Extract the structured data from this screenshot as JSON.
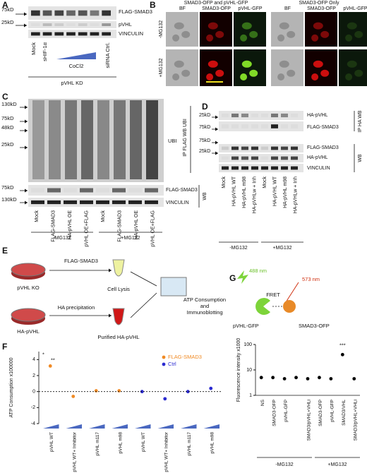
{
  "panel_labels": [
    "A",
    "B",
    "C",
    "D",
    "E",
    "F",
    "G"
  ],
  "panel_a": {
    "markers": [
      "75kD",
      "25kD"
    ],
    "bands": [
      "FLAG-SMAD3",
      "pVHL",
      "VINCULIN"
    ],
    "lanes": [
      "Mock",
      "sHIF-1α",
      "siRNA Ctrl."
    ],
    "treatment": "CoCl2",
    "group": "pVHL KD"
  },
  "panel_b": {
    "groups": [
      "SMAD3-OFP and pVHL-GFP",
      "SMAD3-OFP Only"
    ],
    "columns": [
      "BF",
      "SMAD3-OFP",
      "pVHL-GFP",
      "BF",
      "SMAD3-OFP",
      "pVHL-GFP"
    ],
    "rows": [
      "-MG132",
      "+MG132"
    ]
  },
  "panel_c": {
    "markers": [
      "130kD",
      "75kD",
      "48kD",
      "25kD",
      "75kD",
      "130kD"
    ],
    "bands": [
      "UBI",
      "FLAG-SMAD3",
      "VINCULIN"
    ],
    "method": "WB",
    "lanes": [
      "Mock",
      "FLAG-SMAD3",
      "HA-pVHL OE",
      "pVHL OE+FLAG",
      "Mock",
      "FLAG-SMAD3",
      "HA-pVHL OE",
      "pVHL OE+FLAG"
    ],
    "groups": [
      "-MG132",
      "+MG132"
    ]
  },
  "panel_d": {
    "methods": [
      "IP FLAG WB UBI",
      "IP HA WB",
      "WB"
    ],
    "markers": [
      "25kD",
      "75kD",
      "75kD",
      "25kD"
    ],
    "bands": [
      "HA-pVHL",
      "FLAG-SMAD3",
      "FLAG-SMAD3",
      "HA-pVHL",
      "VINCULIN"
    ],
    "lanes": [
      "Mock",
      "HA-pVHL WT",
      "HA-pVHL m98",
      "HA-pVHLw + Inh",
      "Mock",
      "HA-pVHL WT",
      "HA-pVHL m98",
      "HA-pVHLw + Inh"
    ],
    "groups": [
      "-MG132",
      "+MG132"
    ]
  },
  "panel_e": {
    "flag": "FLAG-SMAD3",
    "ko": "pVHL KO",
    "lysis": "Cell Lysis",
    "precip": "HA precipitation",
    "ha": "HA-pVHL",
    "purified": "Purified HA-pVHL",
    "assay": [
      "ATP Consumption",
      "and",
      "Immunoblotting"
    ]
  },
  "panel_g": {
    "excitation": "488 nm",
    "emission": "573 nm",
    "fret": "FRET",
    "donor": "pVHL-GFP",
    "acceptor": "SMAD3-OFP"
  },
  "chart_data": [
    {
      "type": "dot",
      "ylabel": "ATP Consumption x100000",
      "categories": [
        "pVHL WT",
        "pVHL WT+ Inhibitor",
        "pVHL m117",
        "pVHL m98",
        "pVHL WT",
        "pVHL WT+ Inhibitor",
        "pVHL m117",
        "pVHL m98"
      ],
      "series": [
        {
          "name": "FLAG-SMAD3",
          "color": "#f08a24",
          "values": [
            3.2,
            -0.6,
            0.1,
            0.1,
            null,
            null,
            null,
            null
          ]
        },
        {
          "name": "Ctrl",
          "color": "#2a2ad0",
          "values": [
            null,
            null,
            null,
            null,
            0,
            -0.9,
            0,
            0.4
          ]
        }
      ],
      "annotations": [
        "*",
        "**"
      ],
      "ylim": [
        -4,
        5
      ],
      "yticks": [
        -4,
        -2,
        0,
        2,
        4
      ]
    },
    {
      "type": "dot",
      "log_scale": true,
      "ylabel": "Fluorescence intensity x1000",
      "categories": [
        "NS",
        "SMAD3-OFP",
        "pVHL-GFP",
        null,
        "SMAD3/pVHL+VHLi",
        "SMAD3-OFP",
        "pVHL-GFP",
        "SMAD3/VHL",
        "SMAD3/pVHL+VHLi"
      ],
      "series": [
        {
          "name": null,
          "color": "#000000",
          "values": [
            5,
            5,
            4.5,
            5,
            4.5,
            5,
            4.5,
            40,
            4.5
          ]
        }
      ],
      "annotations": [
        "***"
      ],
      "groups": [
        "-MG132",
        "+MG132"
      ],
      "ylim": [
        1,
        100
      ],
      "yticks": [
        1,
        10,
        100
      ]
    }
  ]
}
